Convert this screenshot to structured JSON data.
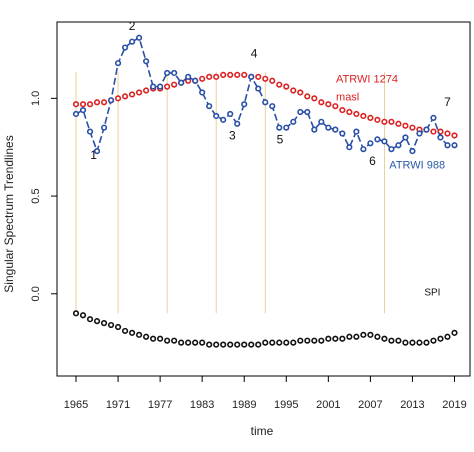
{
  "chart_data": {
    "type": "line",
    "title": "",
    "xlabel": "time",
    "ylabel": "Singular Spectrum Trendlines",
    "xlim": [
      1963,
      2020.5
    ],
    "ylim": [
      -0.39,
      1.36
    ],
    "x_ticks": [
      1965,
      1971,
      1977,
      1983,
      1989,
      1995,
      2001,
      2007,
      2013,
      2019
    ],
    "y_ticks": [
      0.0,
      0.5,
      1.0
    ],
    "y_tick_labels": [
      "0.0",
      "0.5",
      "1.0"
    ],
    "grid": false,
    "series": [
      {
        "name": "ATRWI 988",
        "color": "#2a4fa8",
        "marker_color": "#2a4fa8",
        "x": [
          1965,
          1966,
          1967,
          1968,
          1969,
          1970,
          1971,
          1972,
          1973,
          1974,
          1975,
          1976,
          1977,
          1978,
          1979,
          1980,
          1981,
          1982,
          1983,
          1984,
          1985,
          1986,
          1987,
          1988,
          1989,
          1990,
          1991,
          1992,
          1993,
          1994,
          1995,
          1996,
          1997,
          1998,
          1999,
          2000,
          2001,
          2002,
          2003,
          2004,
          2005,
          2006,
          2007,
          2008,
          2009,
          2010,
          2011,
          2012,
          2013,
          2014,
          2015,
          2016,
          2017,
          2018,
          2019
        ],
        "values": [
          0.92,
          0.94,
          0.83,
          0.73,
          0.85,
          0.99,
          1.18,
          1.26,
          1.29,
          1.31,
          1.19,
          1.06,
          1.06,
          1.13,
          1.13,
          1.08,
          1.11,
          1.09,
          1.03,
          0.96,
          0.91,
          0.89,
          0.92,
          0.87,
          0.97,
          1.11,
          1.05,
          0.98,
          0.96,
          0.85,
          0.85,
          0.88,
          0.93,
          0.93,
          0.84,
          0.88,
          0.85,
          0.84,
          0.82,
          0.75,
          0.83,
          0.74,
          0.77,
          0.79,
          0.78,
          0.74,
          0.76,
          0.8,
          0.73,
          0.82,
          0.84,
          0.9,
          0.8,
          0.76,
          0.76
        ]
      },
      {
        "name": "ATRWI 1274 masl",
        "color": "#dd2222",
        "marker_color": "#dd2222",
        "x": [
          1965,
          1966,
          1967,
          1968,
          1969,
          1970,
          1971,
          1972,
          1973,
          1974,
          1975,
          1976,
          1977,
          1978,
          1979,
          1980,
          1981,
          1982,
          1983,
          1984,
          1985,
          1986,
          1987,
          1988,
          1989,
          1990,
          1991,
          1992,
          1993,
          1994,
          1995,
          1996,
          1997,
          1998,
          1999,
          2000,
          2001,
          2002,
          2003,
          2004,
          2005,
          2006,
          2007,
          2008,
          2009,
          2010,
          2011,
          2012,
          2013,
          2014,
          2015,
          2016,
          2017,
          2018,
          2019
        ],
        "values": [
          0.97,
          0.97,
          0.97,
          0.98,
          0.98,
          0.99,
          1.0,
          1.01,
          1.02,
          1.03,
          1.04,
          1.05,
          1.05,
          1.06,
          1.07,
          1.08,
          1.09,
          1.09,
          1.1,
          1.11,
          1.11,
          1.12,
          1.12,
          1.12,
          1.12,
          1.11,
          1.11,
          1.1,
          1.09,
          1.07,
          1.06,
          1.04,
          1.03,
          1.01,
          1.0,
          0.98,
          0.97,
          0.96,
          0.94,
          0.93,
          0.92,
          0.91,
          0.9,
          0.89,
          0.88,
          0.88,
          0.87,
          0.86,
          0.85,
          0.84,
          0.84,
          0.83,
          0.83,
          0.82,
          0.81
        ]
      },
      {
        "name": "SPI",
        "color": "#111111",
        "marker_color": "#111111",
        "x": [
          1965,
          1966,
          1967,
          1968,
          1969,
          1970,
          1971,
          1972,
          1973,
          1974,
          1975,
          1976,
          1977,
          1978,
          1979,
          1980,
          1981,
          1982,
          1983,
          1984,
          1985,
          1986,
          1987,
          1988,
          1989,
          1990,
          1991,
          1992,
          1993,
          1994,
          1995,
          1996,
          1997,
          1998,
          1999,
          2000,
          2001,
          2002,
          2003,
          2004,
          2005,
          2006,
          2007,
          2008,
          2009,
          2010,
          2011,
          2012,
          2013,
          2014,
          2015,
          2016,
          2017,
          2018,
          2019
        ],
        "values": [
          -0.1,
          -0.11,
          -0.13,
          -0.14,
          -0.15,
          -0.16,
          -0.17,
          -0.19,
          -0.2,
          -0.21,
          -0.22,
          -0.23,
          -0.23,
          -0.24,
          -0.24,
          -0.25,
          -0.25,
          -0.25,
          -0.25,
          -0.26,
          -0.26,
          -0.26,
          -0.26,
          -0.26,
          -0.26,
          -0.26,
          -0.26,
          -0.25,
          -0.25,
          -0.25,
          -0.25,
          -0.25,
          -0.24,
          -0.24,
          -0.24,
          -0.24,
          -0.23,
          -0.23,
          -0.23,
          -0.22,
          -0.22,
          -0.21,
          -0.21,
          -0.22,
          -0.23,
          -0.24,
          -0.24,
          -0.25,
          -0.25,
          -0.25,
          -0.25,
          -0.24,
          -0.23,
          -0.22,
          -0.2
        ]
      }
    ],
    "vertical_lines": [
      {
        "x": 1965,
        "color": "#e6c680"
      },
      {
        "x": 1971,
        "color": "#e6c680"
      },
      {
        "x": 1978,
        "color": "#e6c680"
      },
      {
        "x": 1985,
        "color": "#e6c680"
      },
      {
        "x": 1992,
        "color": "#e6c680"
      },
      {
        "x": 2009,
        "color": "#e6c680"
      }
    ],
    "annotations": [
      {
        "text": "1",
        "x": 1967.5,
        "y": 0.69
      },
      {
        "text": "2",
        "x": 1973.0,
        "y": 1.35
      },
      {
        "text": "3",
        "x": 1987.3,
        "y": 0.79
      },
      {
        "text": "4",
        "x": 1990.4,
        "y": 1.21
      },
      {
        "text": "5",
        "x": 1994.1,
        "y": 0.77
      },
      {
        "text": "6",
        "x": 2007.3,
        "y": 0.66
      },
      {
        "text": "7",
        "x": 2018.0,
        "y": 0.96
      }
    ],
    "series_labels": [
      {
        "text": "ATRWI 1274",
        "x": 2002.1,
        "y": 1.08,
        "color": "#dd2222"
      },
      {
        "text": "masl",
        "x": 2002.1,
        "y": 0.99,
        "color": "#dd2222"
      },
      {
        "text": "ATRWI 988",
        "x": 2009.7,
        "y": 0.64,
        "color": "#2a5aa8"
      },
      {
        "text": "SPI",
        "x": 2014.7,
        "y": -0.01,
        "color": "#111111"
      }
    ]
  }
}
